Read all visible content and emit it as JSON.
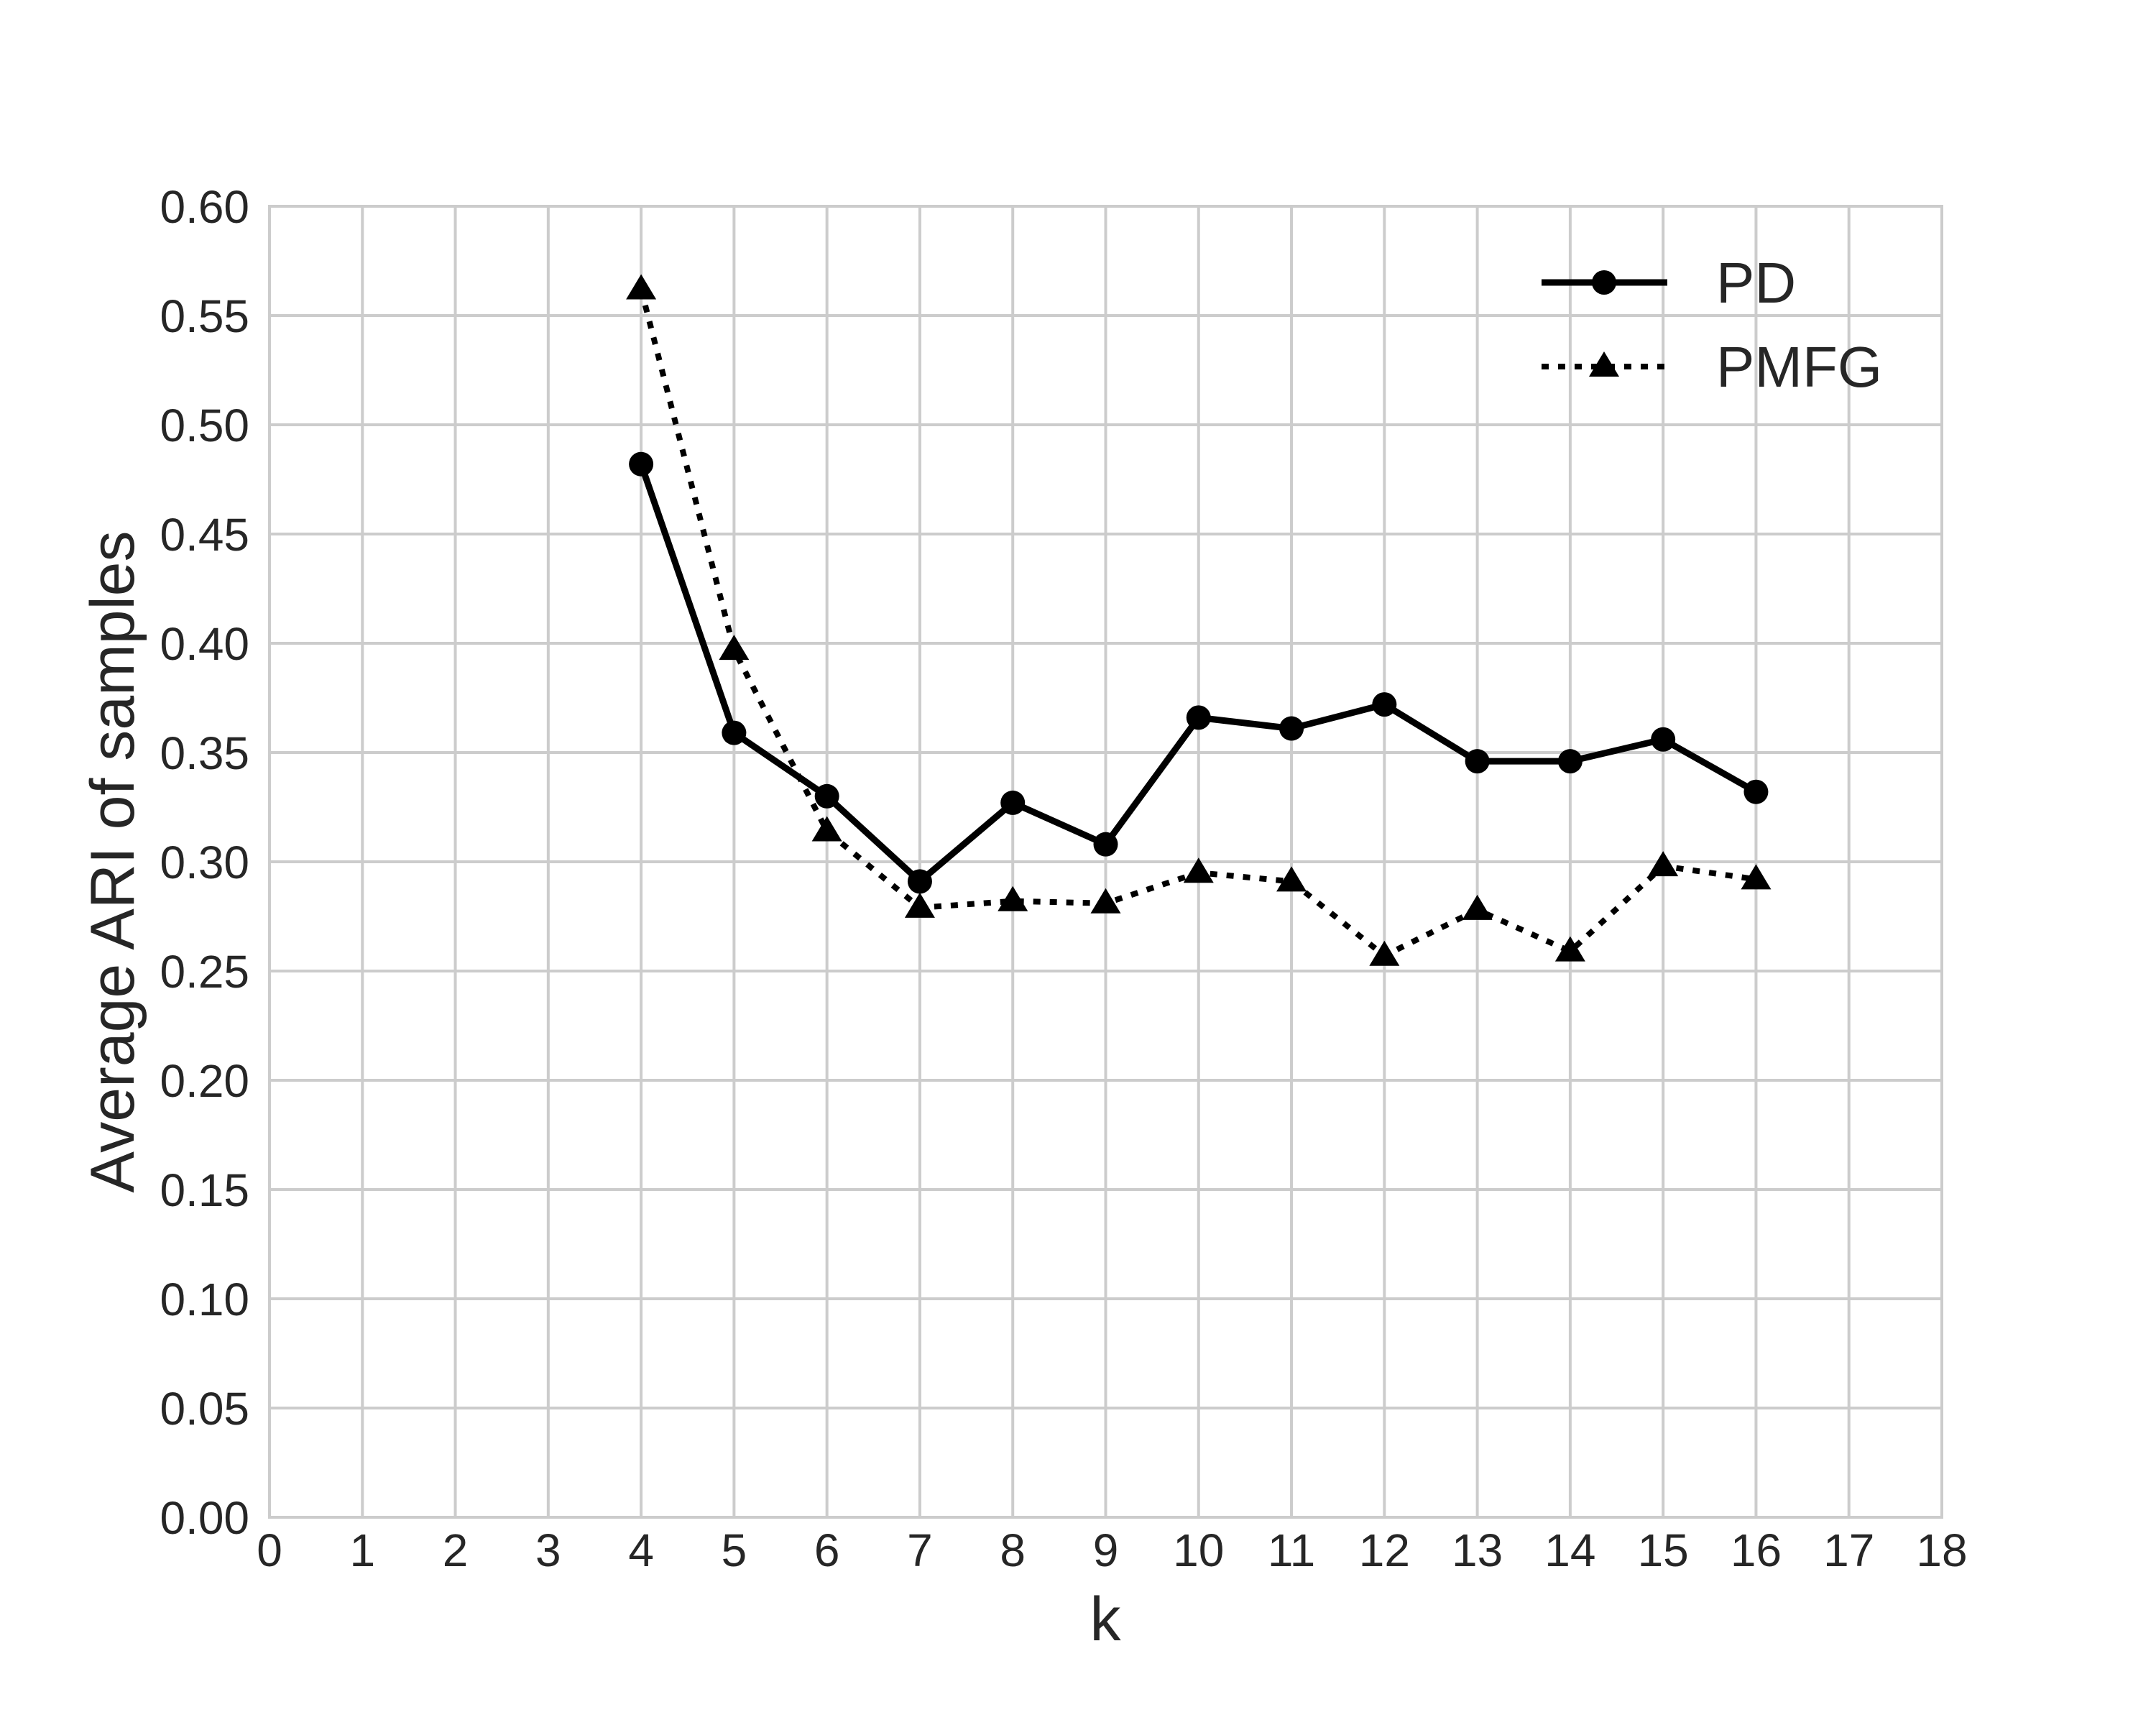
{
  "figure": {
    "background_color": "#ffffff",
    "text_color": "#262626",
    "grid_color": "#cccccc",
    "series_color": "#000000"
  },
  "chart_data": {
    "type": "line",
    "title": "",
    "xlabel": "k",
    "ylabel": "Average ARI of samples",
    "xlim": [
      0,
      18
    ],
    "ylim": [
      0.0,
      0.6
    ],
    "grid": true,
    "legend_position": "upper right",
    "xticks": [
      0,
      1,
      2,
      3,
      4,
      5,
      6,
      7,
      8,
      9,
      10,
      11,
      12,
      13,
      14,
      15,
      16,
      17,
      18
    ],
    "xtick_labels": [
      "0",
      "1",
      "2",
      "3",
      "4",
      "5",
      "6",
      "7",
      "8",
      "9",
      "10",
      "11",
      "12",
      "13",
      "14",
      "15",
      "16",
      "17",
      "18"
    ],
    "yticks": [
      0.0,
      0.05,
      0.1,
      0.15,
      0.2,
      0.25,
      0.3,
      0.35,
      0.4,
      0.45,
      0.5,
      0.55,
      0.6
    ],
    "ytick_labels": [
      "0.00",
      "0.05",
      "0.10",
      "0.15",
      "0.20",
      "0.25",
      "0.30",
      "0.35",
      "0.40",
      "0.45",
      "0.50",
      "0.55",
      "0.60"
    ],
    "x": [
      4,
      5,
      6,
      7,
      8,
      9,
      10,
      11,
      12,
      13,
      14,
      15,
      16
    ],
    "series": [
      {
        "name": "PD",
        "marker": "circle",
        "line_style": "solid",
        "values": [
          0.482,
          0.359,
          0.33,
          0.291,
          0.327,
          0.308,
          0.366,
          0.361,
          0.372,
          0.346,
          0.346,
          0.356,
          0.332
        ]
      },
      {
        "name": "PMFG",
        "marker": "triangle",
        "line_style": "dotted",
        "values": [
          0.562,
          0.397,
          0.314,
          0.279,
          0.282,
          0.281,
          0.295,
          0.291,
          0.257,
          0.278,
          0.259,
          0.298,
          0.292
        ]
      }
    ]
  }
}
